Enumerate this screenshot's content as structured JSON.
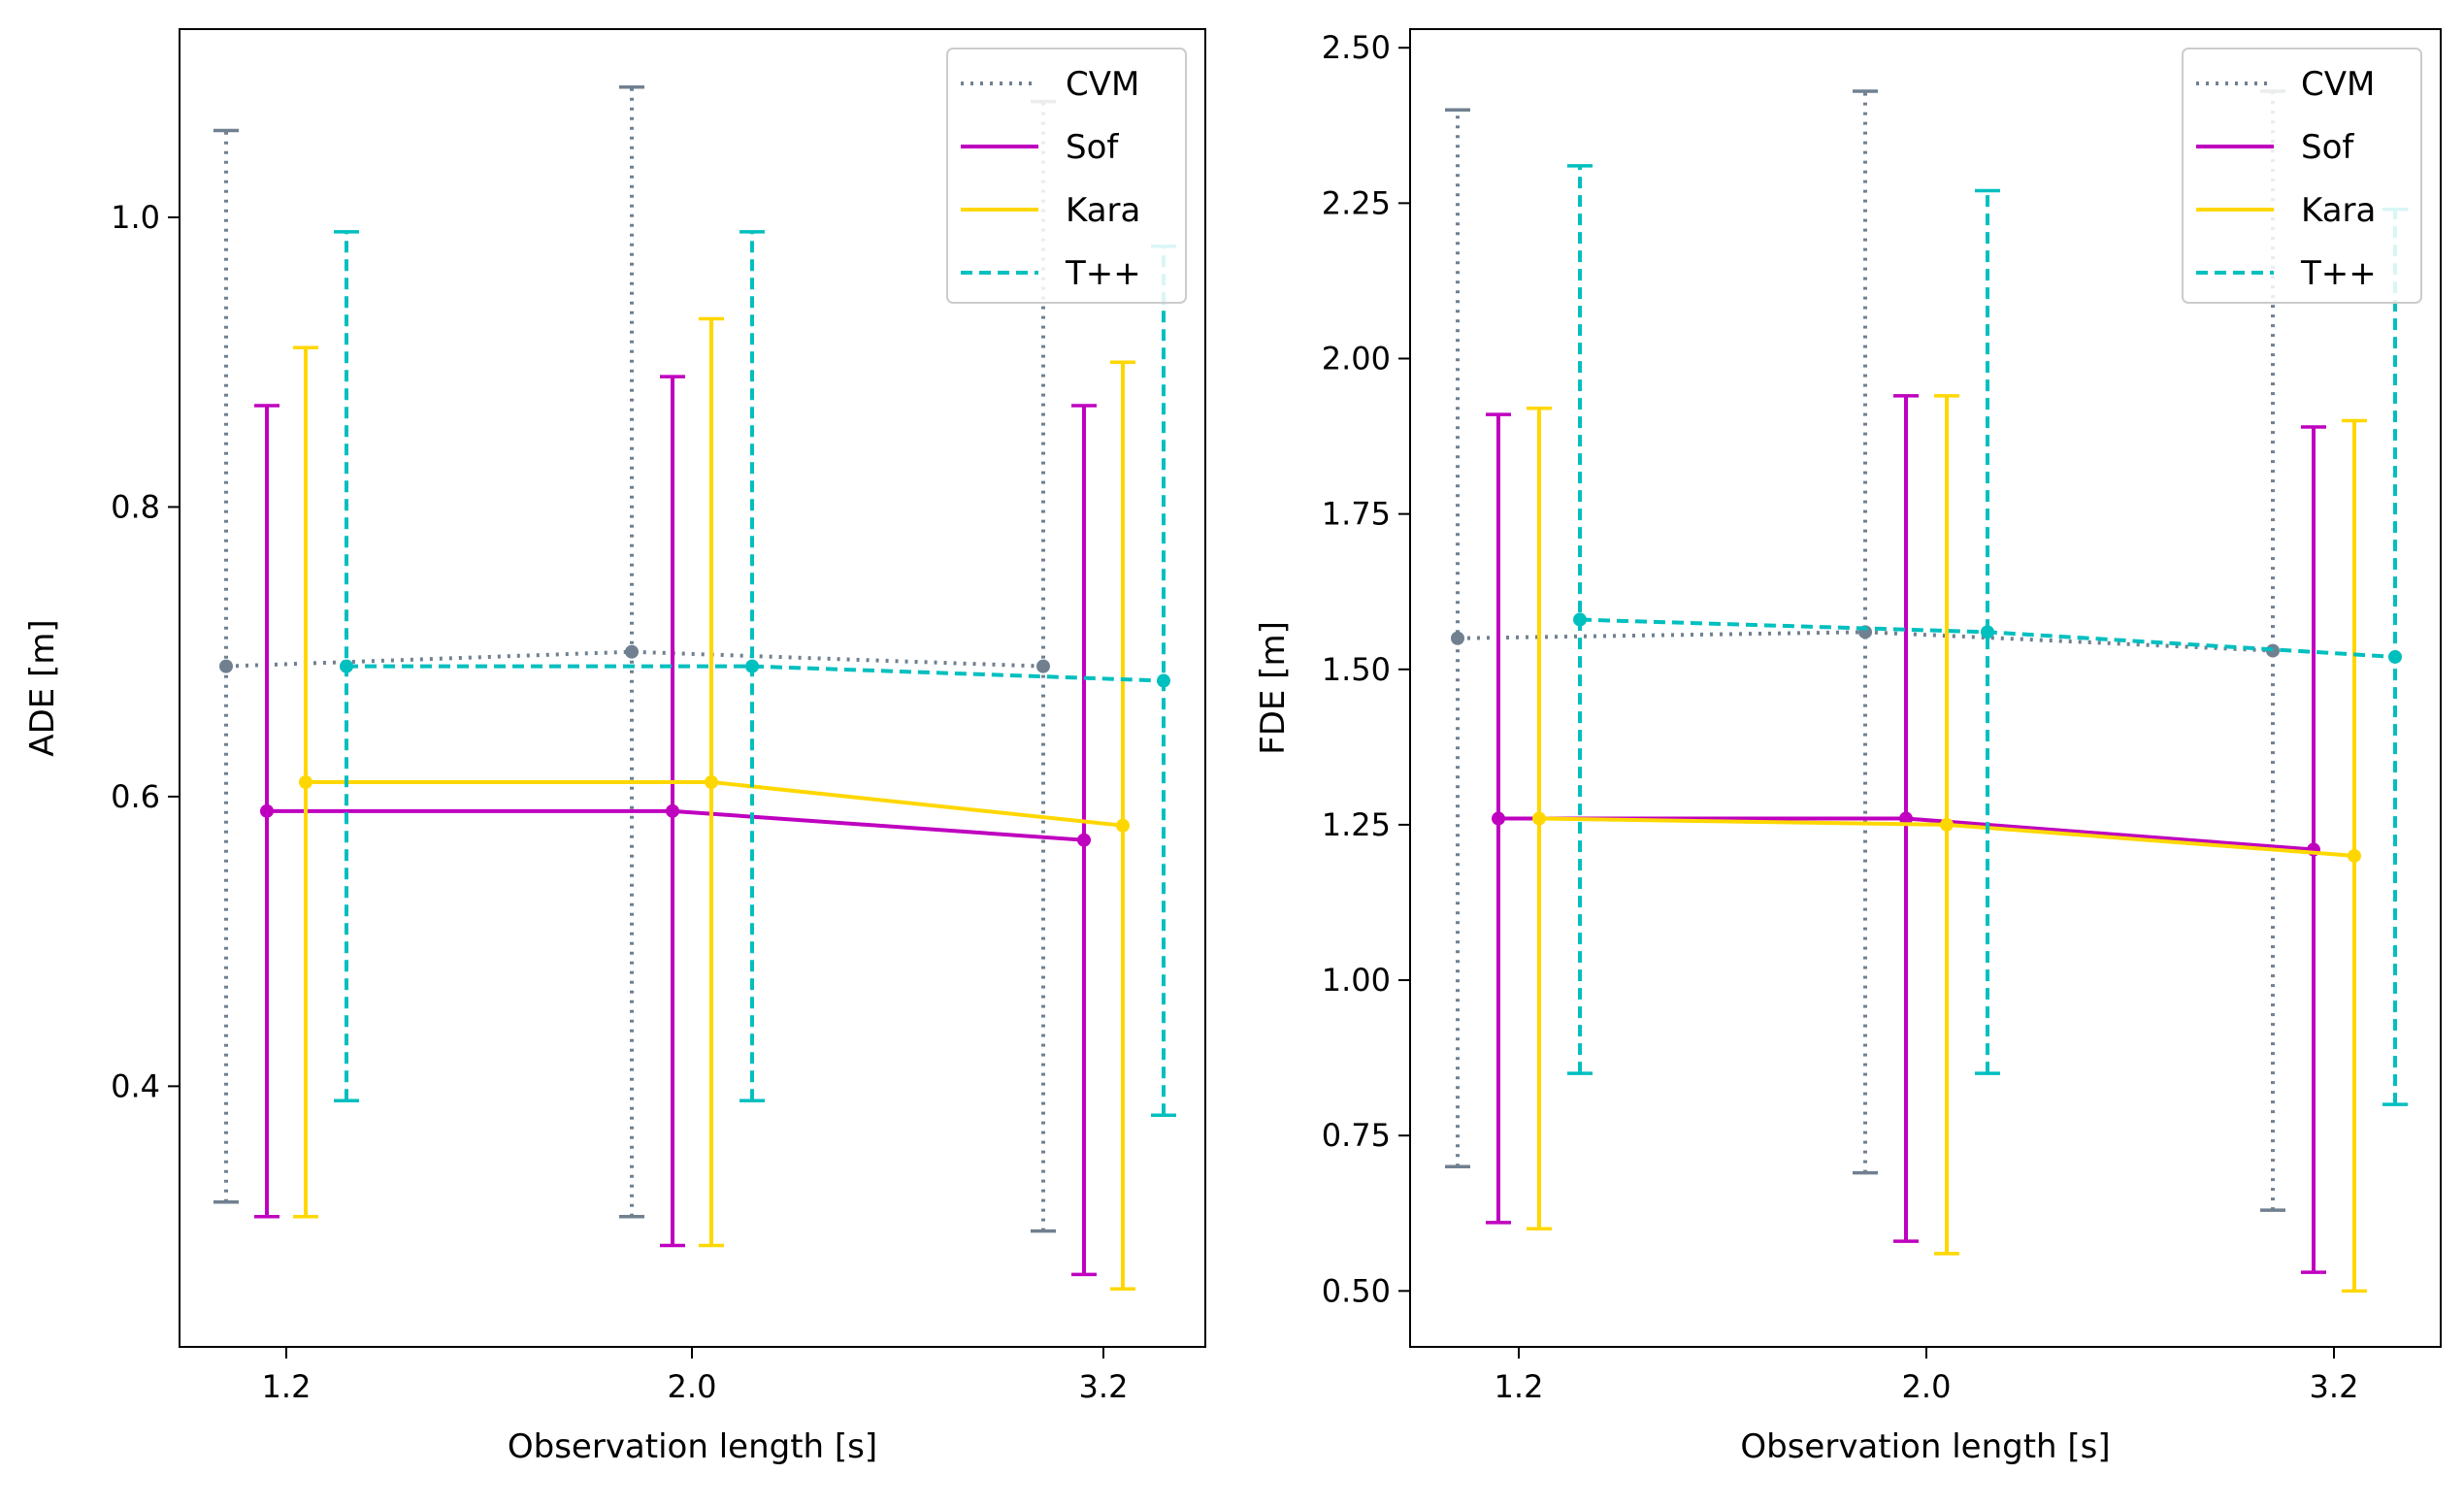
{
  "chart_data": [
    {
      "type": "line",
      "title": "",
      "xlabel": "Observation length [s]",
      "ylabel": "ADE [m]",
      "categories": [
        "1.2",
        "2.0",
        "3.2"
      ],
      "ylim": [
        0.22,
        1.13
      ],
      "yticks": [
        "0.4",
        "0.6",
        "0.8",
        "1.0"
      ],
      "ytick_values": [
        0.4,
        0.6,
        0.8,
        1.0
      ],
      "grid": false,
      "legend_position": "top-right",
      "series": [
        {
          "name": "CVM",
          "color": "#708090",
          "style": "dotted",
          "values": [
            0.69,
            0.7,
            0.69
          ],
          "err_low": [
            0.32,
            0.31,
            0.3
          ],
          "err_high": [
            1.06,
            1.09,
            1.08
          ]
        },
        {
          "name": "Sof",
          "color": "#bf00bf",
          "style": "solid",
          "values": [
            0.59,
            0.59,
            0.57
          ],
          "err_low": [
            0.31,
            0.29,
            0.27
          ],
          "err_high": [
            0.87,
            0.89,
            0.87
          ]
        },
        {
          "name": "Kara",
          "color": "#ffd700",
          "style": "solid",
          "values": [
            0.61,
            0.61,
            0.58
          ],
          "err_low": [
            0.31,
            0.29,
            0.26
          ],
          "err_high": [
            0.91,
            0.93,
            0.9
          ]
        },
        {
          "name": "T++",
          "color": "#00bfbf",
          "style": "dashed",
          "values": [
            0.69,
            0.69,
            0.68
          ],
          "err_low": [
            0.39,
            0.39,
            0.38
          ],
          "err_high": [
            0.99,
            0.99,
            0.98
          ]
        }
      ]
    },
    {
      "type": "line",
      "title": "",
      "xlabel": "Observation length [s]",
      "ylabel": "FDE [m]",
      "categories": [
        "1.2",
        "2.0",
        "3.2"
      ],
      "ylim": [
        0.41,
        2.53
      ],
      "yticks": [
        "0.50",
        "0.75",
        "1.00",
        "1.25",
        "1.50",
        "1.75",
        "2.00",
        "2.25",
        "2.50"
      ],
      "ytick_values": [
        0.5,
        0.75,
        1.0,
        1.25,
        1.5,
        1.75,
        2.0,
        2.25,
        2.5
      ],
      "grid": false,
      "legend_position": "top-right",
      "series": [
        {
          "name": "CVM",
          "color": "#708090",
          "style": "dotted",
          "values": [
            1.55,
            1.56,
            1.53
          ],
          "err_low": [
            0.7,
            0.69,
            0.63
          ],
          "err_high": [
            2.4,
            2.43,
            2.43
          ]
        },
        {
          "name": "Sof",
          "color": "#bf00bf",
          "style": "solid",
          "values": [
            1.26,
            1.26,
            1.21
          ],
          "err_low": [
            0.61,
            0.58,
            0.53
          ],
          "err_high": [
            1.91,
            1.94,
            1.89
          ]
        },
        {
          "name": "Kara",
          "color": "#ffd700",
          "style": "solid",
          "values": [
            1.26,
            1.25,
            1.2
          ],
          "err_low": [
            0.6,
            0.56,
            0.5
          ],
          "err_high": [
            1.92,
            1.94,
            1.9
          ]
        },
        {
          "name": "T++",
          "color": "#00bfbf",
          "style": "dashed",
          "values": [
            1.58,
            1.56,
            1.52
          ],
          "err_low": [
            0.85,
            0.85,
            0.8
          ],
          "err_high": [
            2.31,
            2.27,
            2.24
          ]
        }
      ]
    }
  ]
}
